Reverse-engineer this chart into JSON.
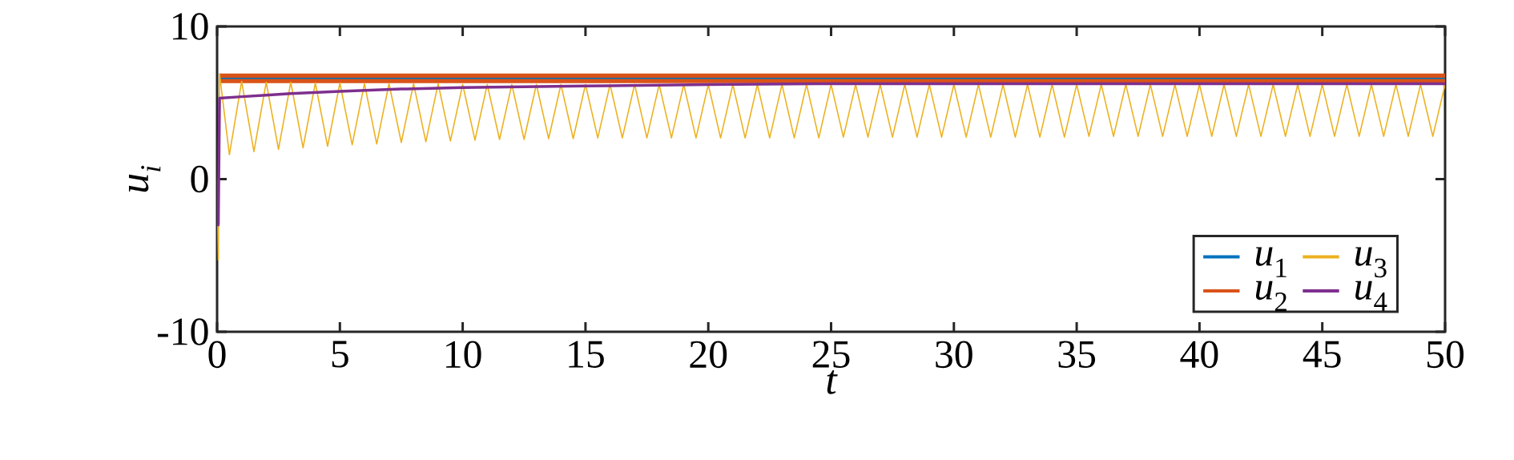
{
  "chart_data": {
    "type": "line",
    "xlabel": "t",
    "ylabel": "*u*$_{i}$",
    "xlim": [
      0,
      50
    ],
    "ylim": [
      -10,
      10
    ],
    "xticks": [
      0,
      5,
      10,
      15,
      20,
      25,
      30,
      35,
      40,
      45,
      50
    ],
    "yticks": [
      -10,
      0,
      10
    ],
    "legend": "bottom right",
    "grid": false,
    "line_style": "solid",
    "marker": "none",
    "series": [
      {
        "name": "*u*$_{1}$",
        "color": "#0072bd",
        "x": [
          0.1,
          50
        ],
        "values": [
          6.6,
          6.6
        ]
      },
      {
        "name": "*u*$_{2}$",
        "color": "#d95319",
        "x": [
          0.1,
          50
        ],
        "values": [
          6.6,
          6.6
        ]
      },
      {
        "name": "*u*$_{3}$",
        "color": "#edb120",
        "x": [
          0,
          0.05,
          0.1,
          0.5,
          1,
          1.5,
          2,
          2.5,
          3,
          3.5,
          4,
          4.5,
          5,
          5.5,
          6,
          6.5,
          7,
          7.5,
          8,
          8.5,
          9,
          9.5,
          10,
          10.5,
          11,
          11.5,
          12,
          12.5,
          13,
          13.5,
          14,
          14.5,
          15,
          15.5,
          16,
          16.5,
          17,
          17.5,
          18,
          18.5,
          19,
          19.5,
          20,
          20.5,
          21,
          21.5,
          22,
          22.5,
          23,
          23.5,
          24,
          24.5,
          25,
          25.5,
          26,
          26.5,
          27,
          27.5,
          28,
          28.5,
          29,
          29.5,
          30,
          30.5,
          31,
          31.5,
          32,
          32.5,
          33,
          33.5,
          34,
          34.5,
          35,
          35.5,
          36,
          36.5,
          37,
          37.5,
          38,
          38.5,
          39,
          39.5,
          40,
          40.5,
          41,
          41.5,
          42,
          42.5,
          43,
          43.5,
          44,
          44.5,
          45,
          45.5,
          46,
          46.5,
          47,
          47.5,
          48,
          48.5,
          49,
          49.5,
          50
        ],
        "values": [
          0,
          -5.3,
          6.9,
          1.6,
          6.4,
          1.8,
          6.35,
          1.95,
          6.35,
          2.05,
          6.3,
          2.15,
          6.3,
          2.25,
          6.25,
          2.3,
          6.25,
          2.4,
          6.25,
          2.45,
          6.25,
          2.5,
          6.2,
          2.55,
          6.2,
          2.6,
          6.2,
          2.6,
          6.2,
          2.65,
          6.2,
          2.65,
          6.2,
          2.7,
          6.2,
          2.7,
          6.2,
          2.7,
          6.2,
          2.7,
          6.2,
          2.7,
          6.2,
          2.7,
          6.2,
          2.7,
          6.2,
          2.7,
          6.2,
          2.7,
          6.2,
          2.7,
          6.2,
          2.75,
          6.2,
          2.75,
          6.2,
          2.75,
          6.2,
          2.75,
          6.2,
          2.75,
          6.2,
          2.75,
          6.2,
          2.75,
          6.2,
          2.75,
          6.2,
          2.75,
          6.2,
          2.75,
          6.2,
          2.8,
          6.2,
          2.8,
          6.2,
          2.8,
          6.2,
          2.8,
          6.2,
          2.8,
          6.2,
          2.8,
          6.2,
          2.8,
          6.2,
          2.8,
          6.2,
          2.8,
          6.2,
          2.8,
          6.2,
          2.8,
          6.2,
          2.8,
          6.2,
          2.8,
          6.2,
          2.8,
          6.2,
          2.8,
          6.2
        ]
      },
      {
        "name": "*u*$_{4}$",
        "color": "#7e2f8e",
        "x": [
          0,
          0.05,
          0.1,
          1,
          2,
          3,
          5,
          7.5,
          10,
          15,
          20,
          25,
          30,
          40,
          50
        ],
        "values": [
          0,
          -3,
          5.3,
          5.4,
          5.5,
          5.6,
          5.75,
          5.9,
          6.0,
          6.1,
          6.2,
          6.25,
          6.25,
          6.25,
          6.25
        ]
      }
    ]
  }
}
